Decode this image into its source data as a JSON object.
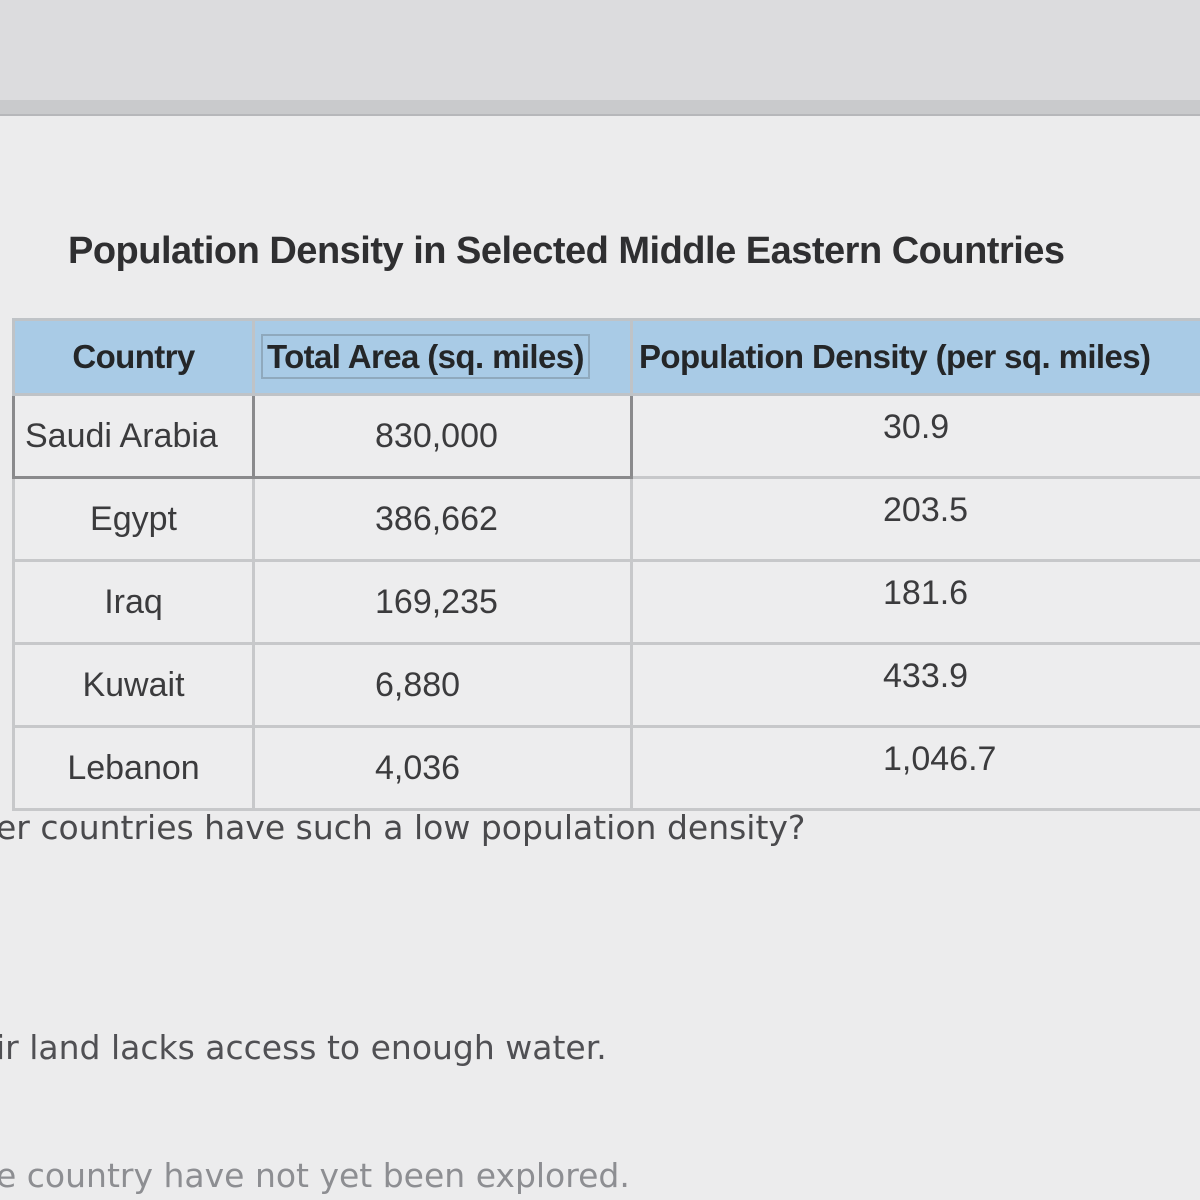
{
  "title": "Population Density in Selected Middle Eastern Countries",
  "table": {
    "headers": [
      "Country",
      "Total Area (sq. miles)",
      "Population Density (per sq. miles)"
    ],
    "rows": [
      {
        "country": "Saudi Arabia",
        "area": "830,000",
        "density": "30.9"
      },
      {
        "country": "Egypt",
        "area": "386,662",
        "density": "203.5"
      },
      {
        "country": "Iraq",
        "area": "169,235",
        "density": "181.6"
      },
      {
        "country": "Kuwait",
        "area": "6,880",
        "density": "433.9"
      },
      {
        "country": "Lebanon",
        "area": "4,036",
        "density": "1,046.7"
      }
    ]
  },
  "question": "er countries have such a low population density?",
  "answers": [
    "ir land lacks access to enough water.",
    "e country have not yet been explored."
  ]
}
